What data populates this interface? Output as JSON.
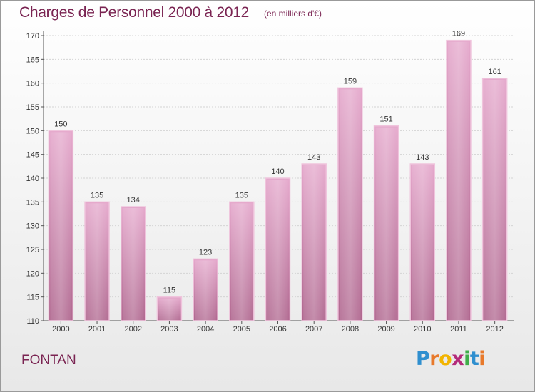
{
  "header": {
    "title": "Charges de Personnel 2000 à 2012",
    "subtitle": "(en milliers d'€)"
  },
  "footer": {
    "commune": "FONTAN",
    "logo_text": "Proxiti",
    "logo_colors": [
      "#2f8fcf",
      "#e8792b",
      "#f2b400",
      "#b32b7a",
      "#3fae49",
      "#2f8fcf",
      "#e8792b"
    ]
  },
  "colors": {
    "bar_top": "#e5a8cc",
    "bar_bottom": "#b0678f",
    "title": "#7a2452"
  },
  "chart_data": {
    "type": "bar",
    "categories": [
      "2000",
      "2001",
      "2002",
      "2003",
      "2004",
      "2005",
      "2006",
      "2007",
      "2008",
      "2009",
      "2010",
      "2011",
      "2012"
    ],
    "values": [
      150,
      135,
      134,
      115,
      123,
      135,
      140,
      143,
      159,
      151,
      143,
      169,
      161
    ],
    "ylim": [
      110,
      170
    ],
    "yticks": [
      110,
      115,
      120,
      125,
      130,
      135,
      140,
      145,
      150,
      155,
      160,
      165,
      170
    ],
    "grid": true,
    "legend": "none"
  }
}
